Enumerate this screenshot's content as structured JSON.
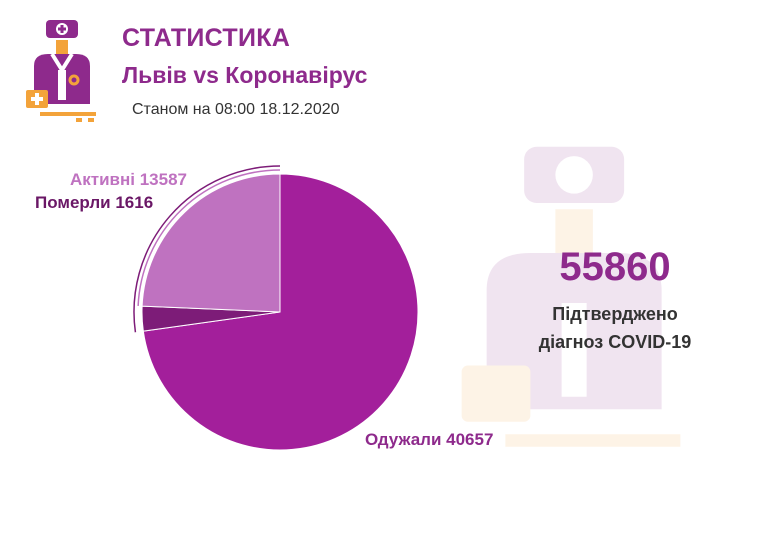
{
  "header": {
    "title": "СТАТИСТИКА",
    "subtitle": "Львів vs Коронавірус",
    "date": "Станом на 08:00 18.12.2020"
  },
  "summary": {
    "confirmed": "55860",
    "caption_line1": "Підтверджено",
    "caption_line2": "діагноз COVID-19"
  },
  "colors": {
    "accent": "#8e2a8c",
    "recovered": "#a31f9b",
    "active": "#bf72c0",
    "deaths": "#7d1c78"
  },
  "icons": [
    "doctor-logo-icon",
    "doctor-watermark-icon"
  ],
  "chart_data": {
    "type": "pie",
    "series": [
      {
        "name": "Одужали",
        "value": 40657,
        "label": "Одужали 40657",
        "color": "#a31f9b"
      },
      {
        "name": "Активні",
        "value": 13587,
        "label": "Активні 13587",
        "color": "#bf72c0"
      },
      {
        "name": "Померли",
        "value": 1616,
        "label": "Померли 1616",
        "color": "#7d1c78"
      }
    ],
    "total": 55860
  }
}
